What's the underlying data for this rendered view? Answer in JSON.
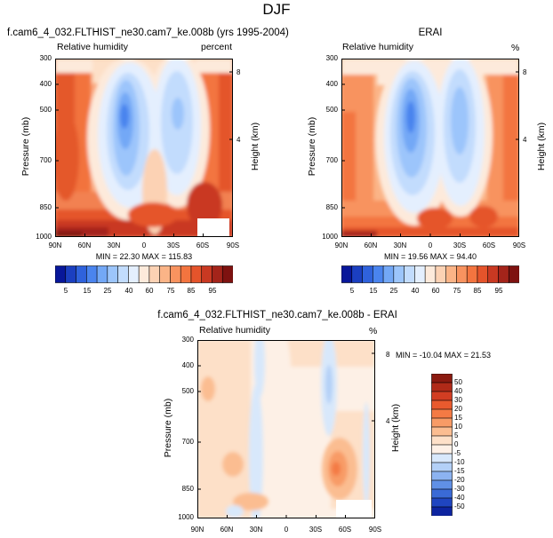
{
  "figure_title": "DJF",
  "chart_data": [
    {
      "type": "contour",
      "title": "f.cam6_4_032.FLTHIST_ne30.cam7_ke.008b (yrs 1995-2004)",
      "left_label": "Relative humidity",
      "units": "percent",
      "ylabel": "Pressure (mb)",
      "ylabel_right": "Height (km)",
      "x_ticks": [
        "90N",
        "60N",
        "30N",
        "0",
        "30S",
        "60S",
        "90S"
      ],
      "y_ticks": [
        "300",
        "400",
        "500",
        "700",
        "850",
        "1000"
      ],
      "height_ticks": [
        "8",
        "4"
      ],
      "min": 22.3,
      "max": 115.83,
      "stats_text": "MIN = 22.30   MAX = 115.83",
      "colorbar_labels": [
        "5",
        "15",
        "25",
        "40",
        "60",
        "75",
        "85",
        "95"
      ],
      "colorbar_colors": [
        "#08179a",
        "#1b3fc0",
        "#2f62dc",
        "#4a84ee",
        "#73a8f6",
        "#9cc5fb",
        "#c2dcfd",
        "#e4effe",
        "#fdeadb",
        "#fcd2b4",
        "#fbb487",
        "#f8935f",
        "#f3743f",
        "#e5542b",
        "#c93922",
        "#a4241a",
        "#7e1210"
      ]
    },
    {
      "type": "contour",
      "title": "ERAI",
      "left_label": "Relative humidity",
      "units": "%",
      "ylabel": "Pressure (mb)",
      "ylabel_right": "Height (km)",
      "x_ticks": [
        "90N",
        "60N",
        "30N",
        "0",
        "30S",
        "60S",
        "90S"
      ],
      "y_ticks": [
        "300",
        "400",
        "500",
        "700",
        "850",
        "1000"
      ],
      "height_ticks": [
        "8",
        "4"
      ],
      "min": 19.56,
      "max": 94.4,
      "stats_text": "MIN = 19.56   MAX = 94.40",
      "colorbar_labels": [
        "5",
        "15",
        "25",
        "40",
        "60",
        "75",
        "85",
        "95"
      ],
      "colorbar_colors": [
        "#08179a",
        "#1b3fc0",
        "#2f62dc",
        "#4a84ee",
        "#73a8f6",
        "#9cc5fb",
        "#c2dcfd",
        "#e4effe",
        "#fdeadb",
        "#fcd2b4",
        "#fbb487",
        "#f8935f",
        "#f3743f",
        "#e5542b",
        "#c93922",
        "#a4241a",
        "#7e1210"
      ]
    },
    {
      "type": "contour",
      "title": "f.cam6_4_032.FLTHIST_ne30.cam7_ke.008b - ERAI",
      "left_label": "Relative humidity",
      "units": "%",
      "ylabel": "Pressure (mb)",
      "ylabel_right": "Height (km)",
      "x_ticks": [
        "90N",
        "60N",
        "30N",
        "0",
        "30S",
        "60S",
        "90S"
      ],
      "y_ticks": [
        "300",
        "400",
        "500",
        "700",
        "850",
        "1000"
      ],
      "height_ticks": [
        "8",
        "4"
      ],
      "min": -10.04,
      "max": 21.53,
      "stats_text": "MIN = -10.04   MAX =  21.53",
      "colorbar_labels": [
        "50",
        "40",
        "30",
        "20",
        "15",
        "10",
        "5",
        "0",
        "-5",
        "-10",
        "-15",
        "-20",
        "-30",
        "-40",
        "-50"
      ],
      "colorbar_colors": [
        "#8b1a10",
        "#b02a18",
        "#d23d22",
        "#e95a2e",
        "#f47a44",
        "#f89b66",
        "#fbbd91",
        "#fde0c8",
        "#fdf0e6",
        "#d8e8fb",
        "#b3d0f7",
        "#8cb3f1",
        "#6090e6",
        "#3a6ad6",
        "#1f45c0",
        "#0d24a0"
      ]
    }
  ]
}
